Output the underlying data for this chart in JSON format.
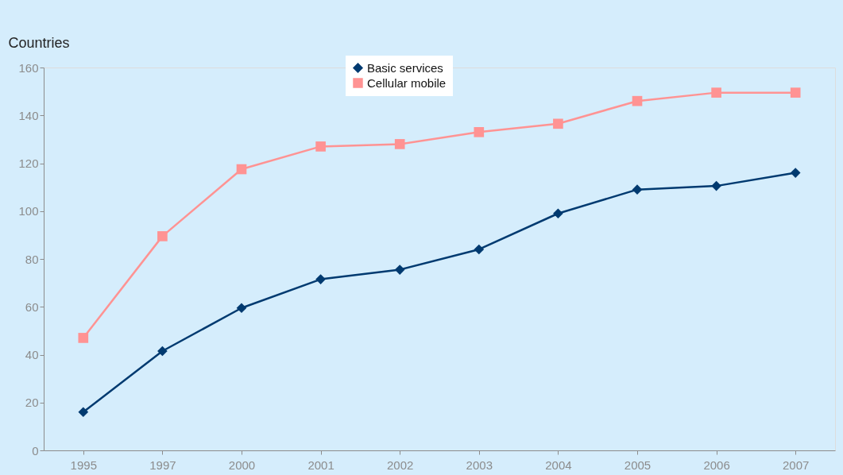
{
  "chart_data": {
    "type": "line",
    "ylabel": "Countries",
    "categories": [
      "1995",
      "1997",
      "2000",
      "2001",
      "2002",
      "2003",
      "2004",
      "2005",
      "2006",
      "2007"
    ],
    "series": [
      {
        "name": "Basic services",
        "color": "#003a70",
        "marker": "diamond",
        "values": [
          16,
          41.5,
          59.5,
          71.5,
          75.5,
          84,
          99,
          109,
          110.5,
          116
        ]
      },
      {
        "name": "Cellular mobile",
        "color": "#ff9393",
        "marker": "square",
        "values": [
          47,
          89.5,
          117.5,
          127,
          128,
          133,
          136.5,
          146,
          149.5,
          149.5
        ]
      }
    ],
    "ylim": [
      0,
      160
    ],
    "yticks": [
      0,
      20,
      40,
      60,
      80,
      100,
      120,
      140,
      160
    ],
    "grid": false,
    "legend": "top",
    "line_style": "solid"
  }
}
